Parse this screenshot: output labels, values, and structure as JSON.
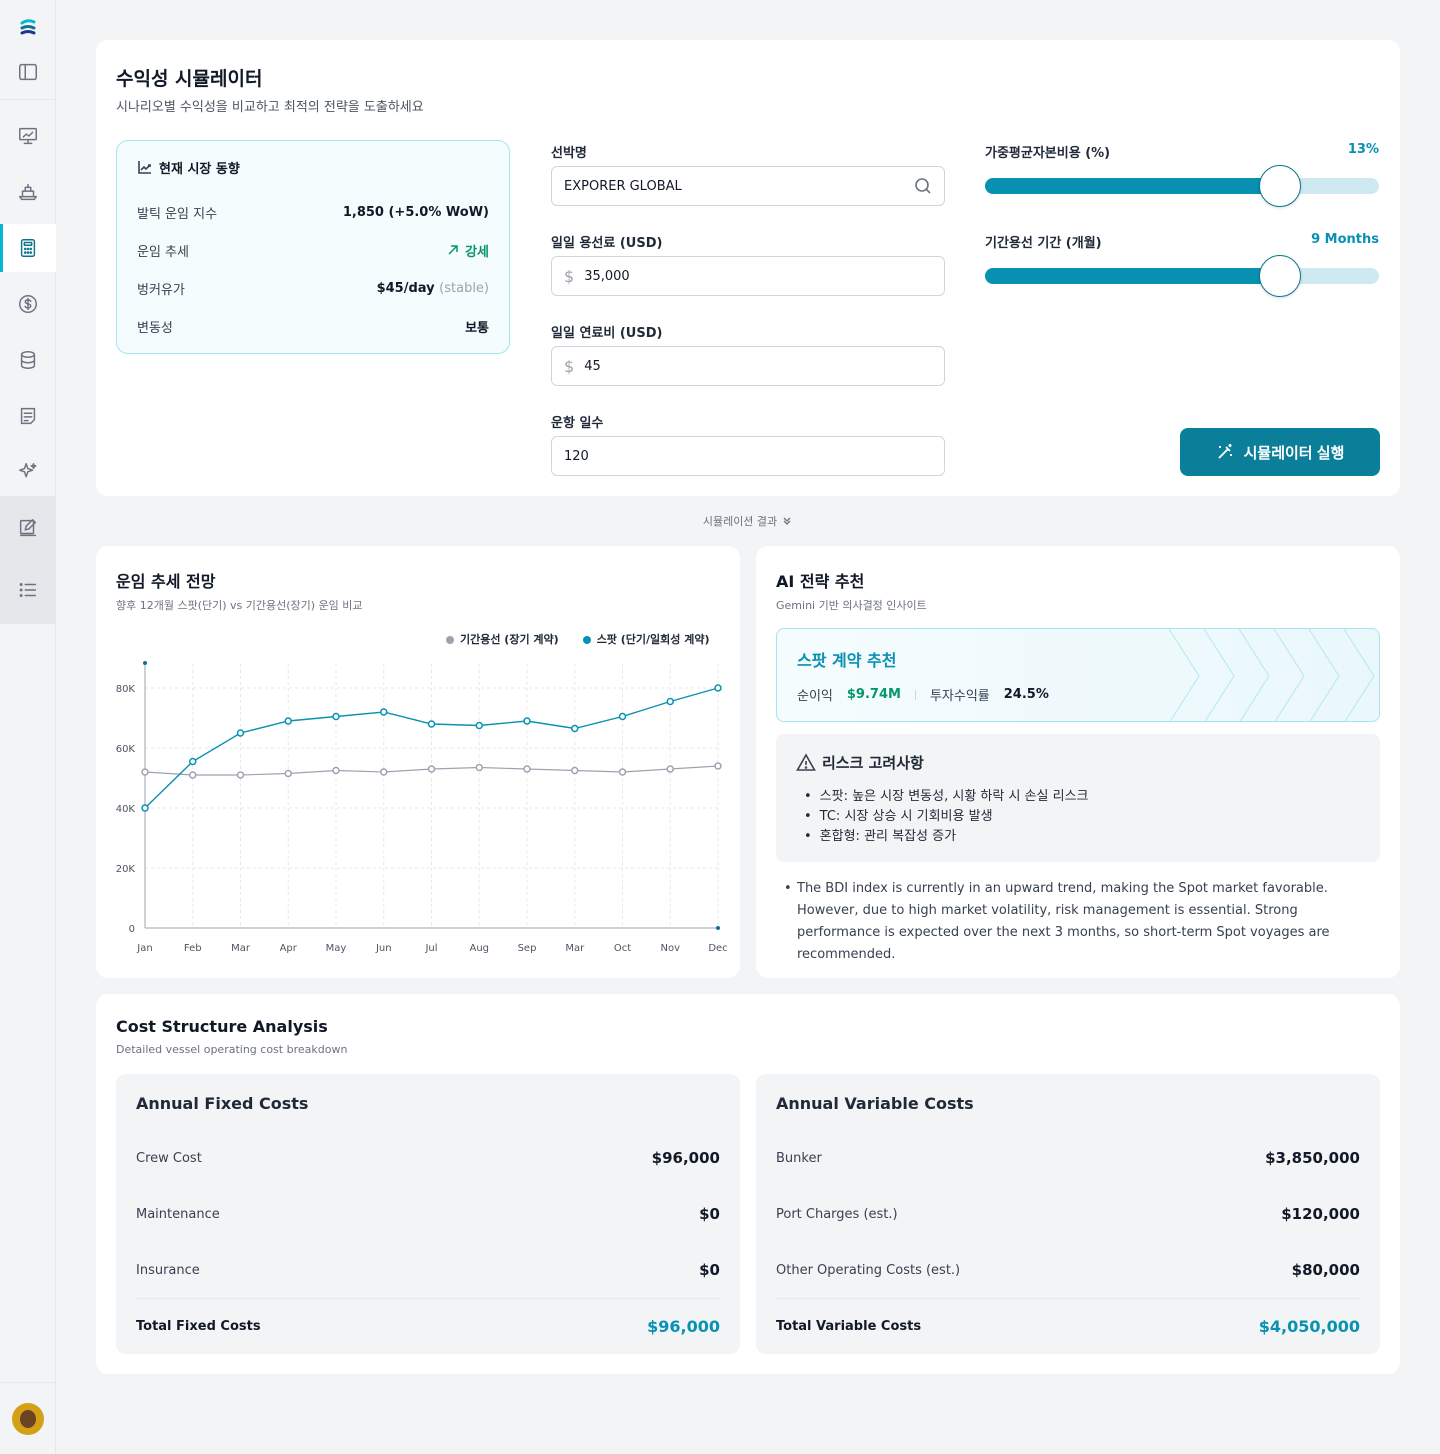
{
  "header": {
    "title": "수익성 시뮬레이터",
    "subtitle": "시나리오별 수익성을 비교하고 최적의 전략을 도출하세요"
  },
  "market": {
    "title": "현재 시장 동향",
    "rows": [
      {
        "label": "발틱 운임 지수",
        "value": "1,850 (+5.0% WoW)"
      },
      {
        "label": "운임 추세",
        "value": "강세"
      },
      {
        "label": "벙커유가",
        "value": "$45/day",
        "note": "(stable)"
      },
      {
        "label": "변동성",
        "value": "보통"
      }
    ]
  },
  "form": {
    "vessel_label": "선박명",
    "vessel_value": "EXPORER GLOBAL",
    "hire_label": "일일 용선료 (USD)",
    "hire_value": "35,000",
    "fuel_label": "일일 연료비 (USD)",
    "fuel_value": "45",
    "days_label": "운항 일수",
    "days_value": "120",
    "currency_symbol": "$"
  },
  "sliders": {
    "wacc_label": "가중평균자본비용 (%)",
    "wacc_value": "13%",
    "wacc_level": 0.75,
    "period_label": "기간용선 기간 (개월)",
    "period_value": "9 Months",
    "period_level": 0.75
  },
  "run_button": "시뮬레이터 실행",
  "results_divider": "시뮬레이션 결과",
  "chart_card": {
    "title": "운임 추세 전망",
    "subtitle": "향후 12개월 스팟(단기) vs 기간용선(장기) 운임 비교"
  },
  "chart_data": {
    "type": "line",
    "categories": [
      "Jan",
      "Feb",
      "Mar",
      "Apr",
      "May",
      "Jun",
      "Jul",
      "Aug",
      "Sep",
      "Mar",
      "Oct",
      "Nov",
      "Dec"
    ],
    "y_ticks": [
      "0",
      "20K",
      "40K",
      "60K",
      "80K"
    ],
    "ylim": [
      0,
      80000
    ],
    "grid": true,
    "legend_position": "top-right",
    "series": [
      {
        "name": "기간용선 (장기 계약)",
        "color": "#9ca3af",
        "values": [
          52000,
          51000,
          51000,
          51500,
          52500,
          52000,
          53000,
          53500,
          53000,
          52500,
          52000,
          53000,
          54000
        ]
      },
      {
        "name": "스팟 (단기/일회성 계약)",
        "color": "#0891b2",
        "values": [
          40000,
          55500,
          65000,
          69000,
          70500,
          72000,
          68000,
          67500,
          69000,
          66500,
          70500,
          75500,
          80000
        ]
      }
    ]
  },
  "ai_card": {
    "title": "AI 전략 추천",
    "subtitle": "Gemini 기반 의사결정 인사이트",
    "rec_title": "스팟 계약 추천",
    "profit_label": "순이익",
    "profit_value": "$9.74M",
    "roi_label": "투자수익률",
    "roi_value": "24.5%",
    "risk_title": "리스크 고려사항",
    "risks": [
      "스팟: 높은 시장 변동성, 시황 하락 시 손실 리스크",
      "TC: 시장 상승 시 기회비용 발생",
      "혼합형: 관리 복잡성 증가"
    ],
    "insight": "The BDI index is currently in an upward trend, making the Spot market favorable. However, due to high market volatility, risk management is essential. Strong performance is expected over the next 3 months, so short-term Spot voyages are recommended."
  },
  "cost": {
    "title": "Cost Structure Analysis",
    "subtitle": "Detailed vessel operating cost breakdown",
    "fixed": {
      "title": "Annual Fixed Costs",
      "rows": [
        {
          "label": "Crew Cost",
          "value": "$96,000"
        },
        {
          "label": "Maintenance",
          "value": "$0"
        },
        {
          "label": "Insurance",
          "value": "$0"
        }
      ],
      "total_label": "Total Fixed Costs",
      "total_value": "$96,000"
    },
    "variable": {
      "title": "Annual Variable Costs",
      "rows": [
        {
          "label": "Bunker",
          "value": "$3,850,000"
        },
        {
          "label": "Port Charges (est.)",
          "value": "$120,000"
        },
        {
          "label": "Other Operating Costs (est.)",
          "value": "$80,000"
        }
      ],
      "total_label": "Total Variable Costs",
      "total_value": "$4,050,000"
    }
  },
  "colors": {
    "accent": "#0891b2",
    "button": "#0b7f99",
    "positive": "#059669"
  }
}
